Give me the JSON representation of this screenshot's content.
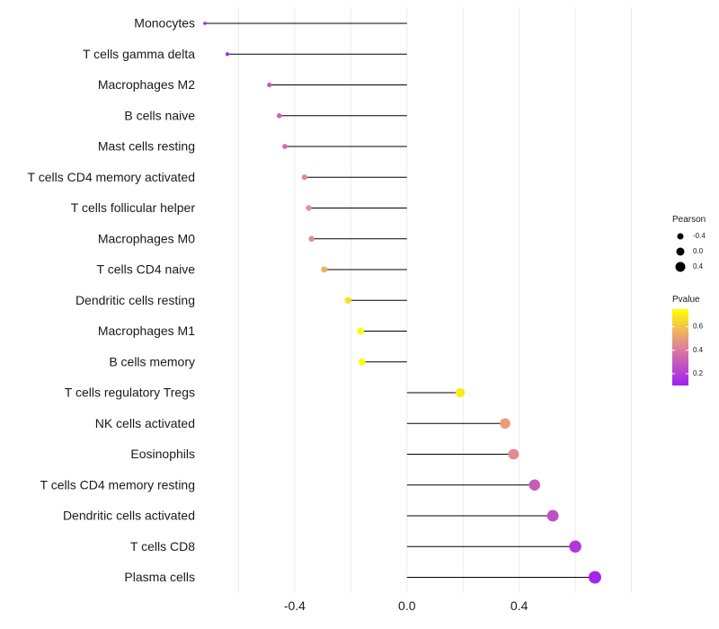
{
  "chart_data": {
    "type": "lollipop",
    "title": "",
    "xlabel": "",
    "ylabel": "",
    "xlim": [
      -0.72,
      0.92
    ],
    "x_ticks": [
      -0.4,
      0.0,
      0.4
    ],
    "x_tick_labels": [
      "-0.4",
      "0.0",
      "0.4"
    ],
    "grid": true,
    "legend_position": "right",
    "categories": [
      "Monocytes",
      "T cells gamma delta",
      "Macrophages M2",
      "B cells naive",
      "Mast cells resting",
      "T cells CD4 memory activated",
      "T cells follicular helper",
      "Macrophages M0",
      "T cells CD4 naive",
      "Dendritic cells resting",
      "Macrophages M1",
      "B cells memory",
      "T cells regulatory  Tregs ",
      "NK cells activated",
      "Eosinophils",
      "T cells CD4 memory resting",
      "Dendritic cells activated",
      "T cells CD8",
      "Plasma cells"
    ],
    "pearson": [
      -0.72,
      -0.64,
      -0.49,
      -0.455,
      -0.435,
      -0.365,
      -0.35,
      -0.34,
      -0.295,
      -0.21,
      -0.165,
      -0.16,
      0.19,
      0.35,
      0.38,
      0.455,
      0.52,
      0.6,
      0.67
    ],
    "pvalue": [
      0.08,
      0.14,
      0.3,
      0.33,
      0.36,
      0.46,
      0.47,
      0.45,
      0.55,
      0.68,
      0.74,
      0.75,
      0.7,
      0.5,
      0.45,
      0.3,
      0.26,
      0.18,
      0.12
    ],
    "legend": {
      "size_title": "Pearson",
      "size_entries": [
        "-0.4",
        "0.0",
        "0.4"
      ],
      "color_title": "Pvalue",
      "color_ticks": [
        "0.6",
        "0.4",
        "0.2"
      ],
      "color_low": "#a020f0",
      "color_mid": "#e0809a",
      "color_high": "#ffff00",
      "pvalue_range": [
        0.1,
        0.75
      ]
    }
  }
}
